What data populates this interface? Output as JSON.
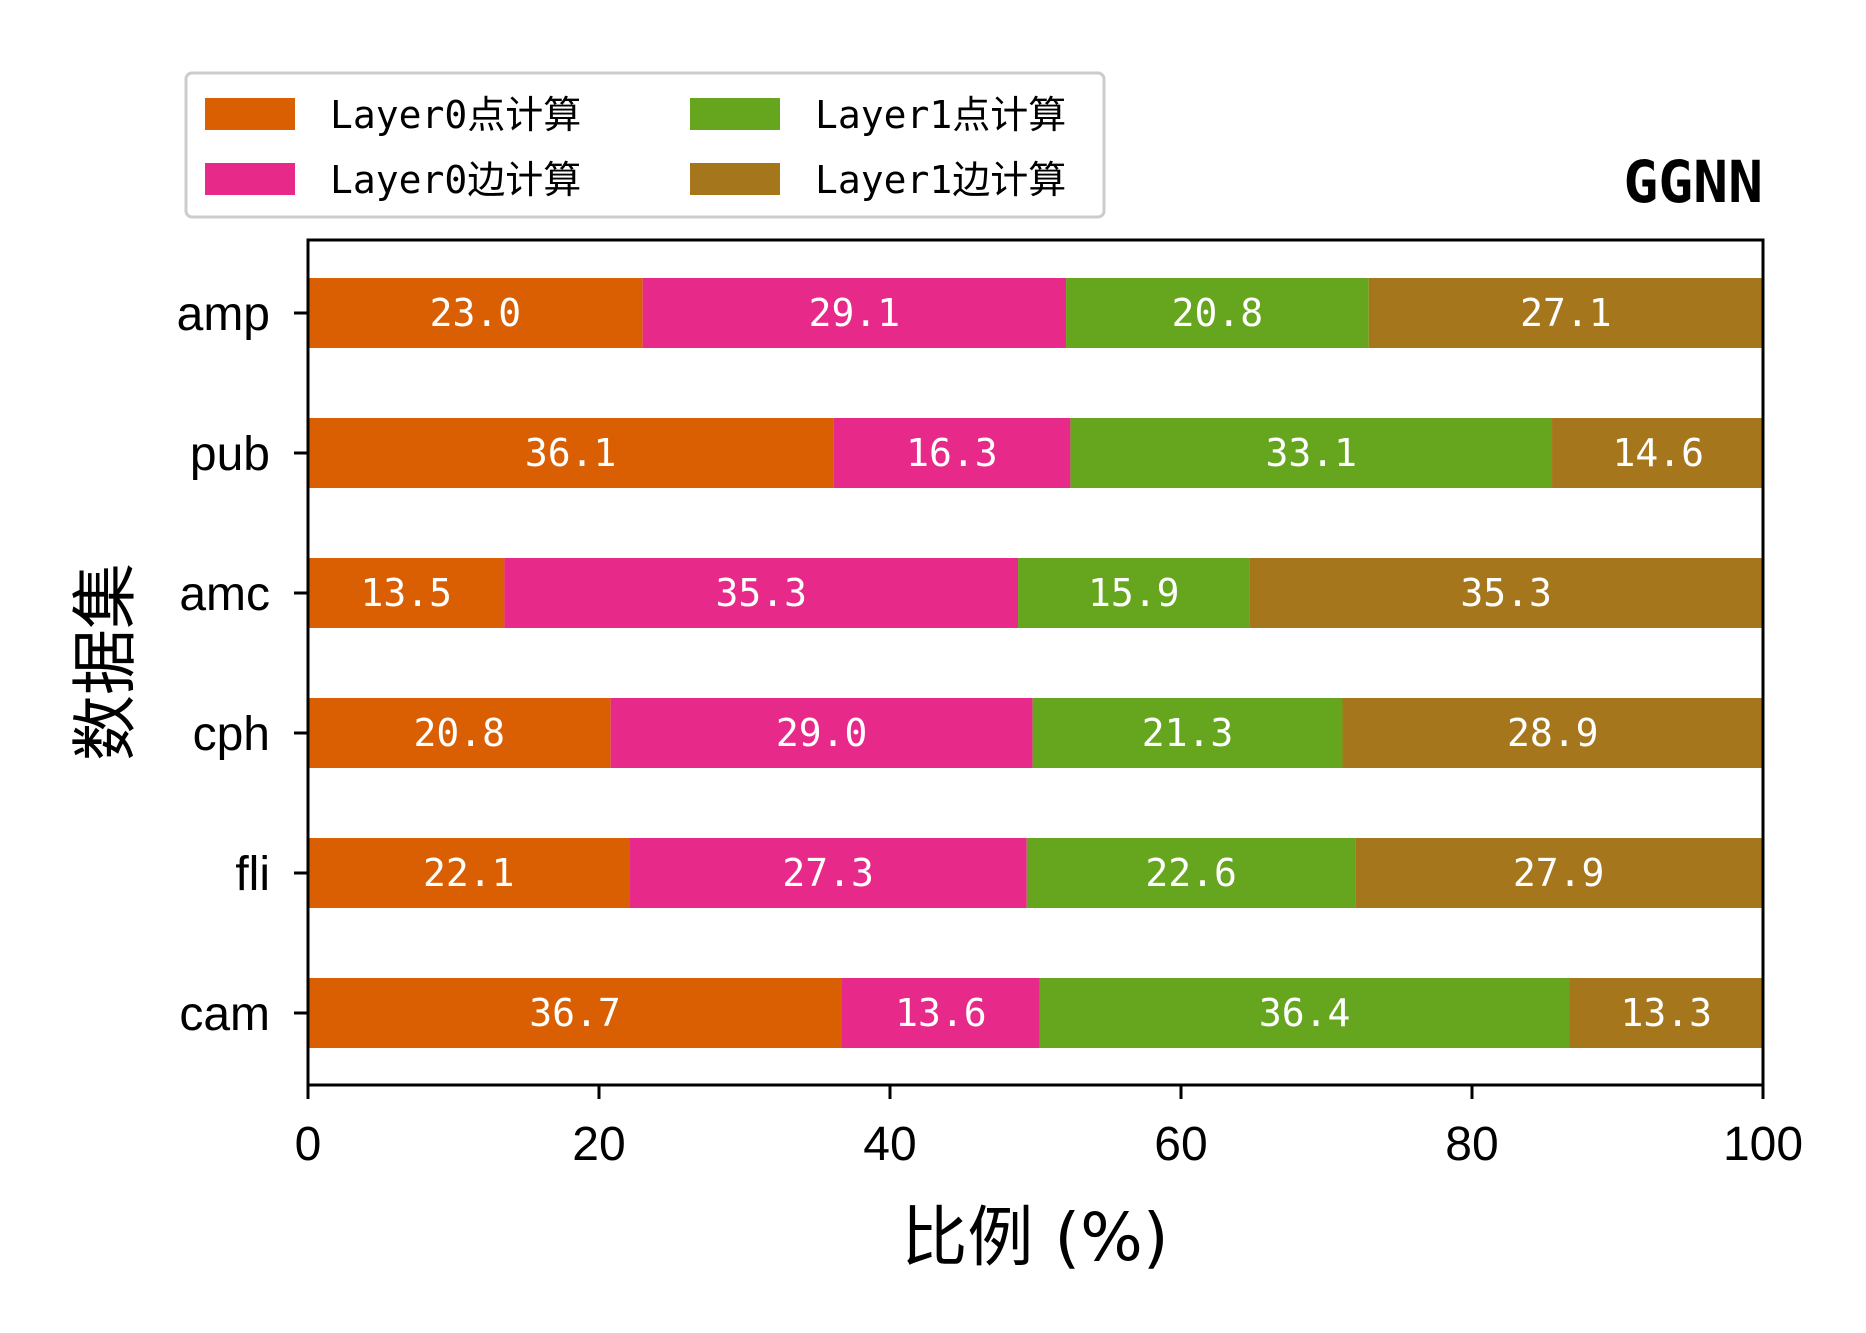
{
  "chart_data": {
    "type": "bar",
    "orientation": "horizontal",
    "stacked": true,
    "title": "GGNN",
    "xlabel": "比例 (%)",
    "ylabel": "数据集",
    "xlim": [
      0,
      100
    ],
    "xticks": [
      "0",
      "20",
      "40",
      "60",
      "80",
      "100"
    ],
    "categories": [
      "amp",
      "pub",
      "amc",
      "cph",
      "fli",
      "cam"
    ],
    "series": [
      {
        "name": "Layer0点计算",
        "color": "#d95f02",
        "values": [
          23.0,
          36.1,
          13.5,
          20.8,
          22.1,
          36.7
        ],
        "labels": [
          "23.0",
          "36.1",
          "13.5",
          "20.8",
          "22.1",
          "36.7"
        ]
      },
      {
        "name": "Layer0边计算",
        "color": "#e7298a",
        "values": [
          29.1,
          16.3,
          35.3,
          29.0,
          27.3,
          13.6
        ],
        "labels": [
          "29.1",
          "16.3",
          "35.3",
          "29.0",
          "27.3",
          "13.6"
        ]
      },
      {
        "name": "Layer1点计算",
        "color": "#66a61e",
        "values": [
          20.8,
          33.1,
          15.9,
          21.3,
          22.6,
          36.4
        ],
        "labels": [
          "20.8",
          "33.1",
          "15.9",
          "21.3",
          "22.6",
          "36.4"
        ]
      },
      {
        "name": "Layer1边计算",
        "color": "#a6761d",
        "values": [
          27.1,
          14.6,
          35.3,
          28.9,
          27.9,
          13.3
        ],
        "labels": [
          "27.1",
          "14.6",
          "35.3",
          "28.9",
          "27.9",
          "13.3"
        ]
      }
    ],
    "legend": {
      "placement": "top-left-outside",
      "columns": 2
    },
    "grid": false
  }
}
